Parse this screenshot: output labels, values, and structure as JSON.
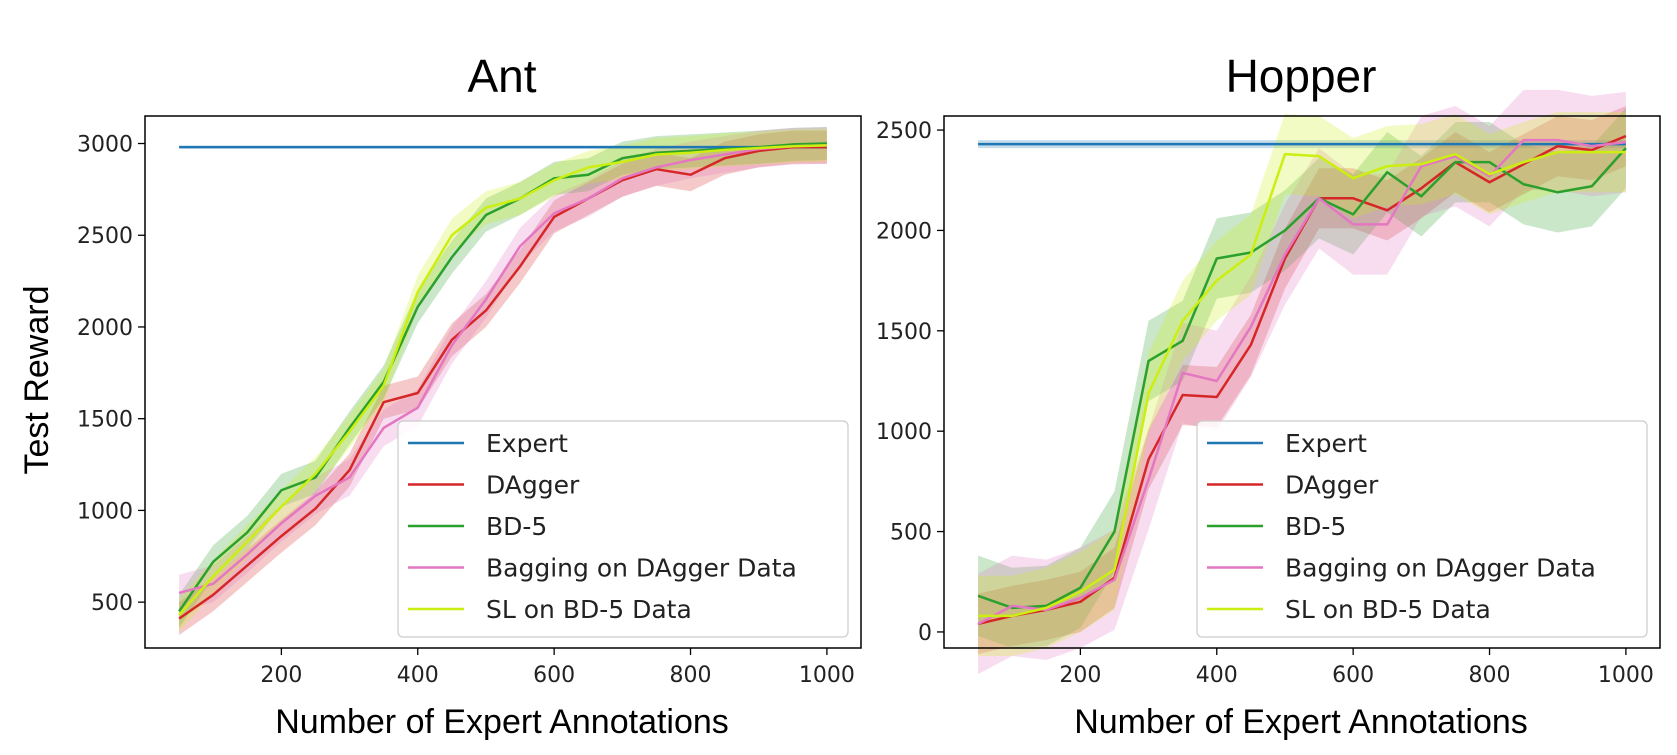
{
  "figure": {
    "ylabel": "Test Reward"
  },
  "colors": {
    "Expert": "#1f77b4",
    "DAgger": "#d62728",
    "BD-5": "#2ca02c",
    "Bagging on DAgger Data": "#e377c2",
    "SL on BD-5 Data": "#ccee11"
  },
  "chart_data": [
    {
      "type": "line",
      "title": "Ant",
      "xlabel": "Number of Expert Annotations",
      "ylabel": "Test Reward",
      "xlim": [
        0,
        1050
      ],
      "ylim": [
        250,
        3150
      ],
      "xticks": [
        200,
        400,
        600,
        800,
        1000
      ],
      "yticks": [
        500,
        1000,
        1500,
        2000,
        2500,
        3000
      ],
      "legend_position": "lower-right",
      "x": [
        50,
        100,
        150,
        200,
        250,
        300,
        350,
        400,
        450,
        500,
        550,
        600,
        650,
        700,
        750,
        800,
        850,
        900,
        950,
        1000
      ],
      "series": [
        {
          "name": "Expert",
          "values": [
            2980,
            2980,
            2980,
            2980,
            2980,
            2980,
            2980,
            2980,
            2980,
            2980,
            2980,
            2980,
            2980,
            2980,
            2980,
            2980,
            2980,
            2980,
            2980,
            2980
          ],
          "band": 8
        },
        {
          "name": "DAgger",
          "values": [
            410,
            540,
            700,
            860,
            1010,
            1220,
            1590,
            1640,
            1930,
            2090,
            2330,
            2600,
            2700,
            2800,
            2860,
            2830,
            2920,
            2960,
            2980,
            2980
          ],
          "band": 90
        },
        {
          "name": "BD-5",
          "values": [
            450,
            720,
            880,
            1110,
            1180,
            1450,
            1700,
            2110,
            2380,
            2610,
            2700,
            2810,
            2830,
            2920,
            2950,
            2960,
            2970,
            2980,
            2995,
            3000
          ],
          "band": 90
        },
        {
          "name": "Bagging on DAgger Data",
          "values": [
            550,
            600,
            760,
            930,
            1080,
            1180,
            1450,
            1560,
            1900,
            2150,
            2440,
            2620,
            2700,
            2810,
            2870,
            2910,
            2940,
            2970,
            2985,
            2990
          ],
          "band": 100
        },
        {
          "name": "SL on BD-5 Data",
          "values": [
            430,
            640,
            830,
            1020,
            1200,
            1430,
            1680,
            2190,
            2500,
            2650,
            2700,
            2800,
            2870,
            2900,
            2940,
            2950,
            2965,
            2975,
            2985,
            2990
          ],
          "band": 90
        }
      ]
    },
    {
      "type": "line",
      "title": "Hopper",
      "xlabel": "Number of Expert Annotations",
      "ylabel": "",
      "xlim": [
        0,
        1050
      ],
      "ylim": [
        -80,
        2570
      ],
      "xticks": [
        200,
        400,
        600,
        800,
        1000
      ],
      "yticks": [
        0,
        500,
        1000,
        1500,
        2000,
        2500
      ],
      "legend_position": "lower-right",
      "x": [
        50,
        100,
        150,
        200,
        250,
        300,
        350,
        400,
        450,
        500,
        550,
        600,
        650,
        700,
        750,
        800,
        850,
        900,
        950,
        1000
      ],
      "series": [
        {
          "name": "Expert",
          "values": [
            2430,
            2430,
            2430,
            2430,
            2430,
            2430,
            2430,
            2430,
            2430,
            2430,
            2430,
            2430,
            2430,
            2430,
            2430,
            2430,
            2430,
            2430,
            2430,
            2430
          ],
          "band": 20
        },
        {
          "name": "DAgger",
          "values": [
            40,
            80,
            110,
            150,
            270,
            860,
            1180,
            1170,
            1430,
            1860,
            2160,
            2160,
            2100,
            2210,
            2340,
            2240,
            2330,
            2420,
            2400,
            2470
          ],
          "band": 150
        },
        {
          "name": "BD-5",
          "values": [
            180,
            120,
            130,
            220,
            500,
            1350,
            1450,
            1860,
            1890,
            2000,
            2160,
            2080,
            2290,
            2170,
            2340,
            2340,
            2230,
            2190,
            2220,
            2410
          ],
          "band": 200
        },
        {
          "name": "Bagging on DAgger Data",
          "values": [
            40,
            130,
            110,
            170,
            260,
            760,
            1290,
            1250,
            1520,
            1880,
            2160,
            2030,
            2030,
            2320,
            2370,
            2270,
            2450,
            2450,
            2420,
            2440
          ],
          "band": 250
        },
        {
          "name": "SL on BD-5 Data",
          "values": [
            80,
            80,
            120,
            200,
            310,
            1190,
            1550,
            1750,
            1880,
            2380,
            2370,
            2260,
            2320,
            2330,
            2380,
            2280,
            2340,
            2390,
            2390,
            2390
          ],
          "band": 200
        }
      ]
    }
  ]
}
